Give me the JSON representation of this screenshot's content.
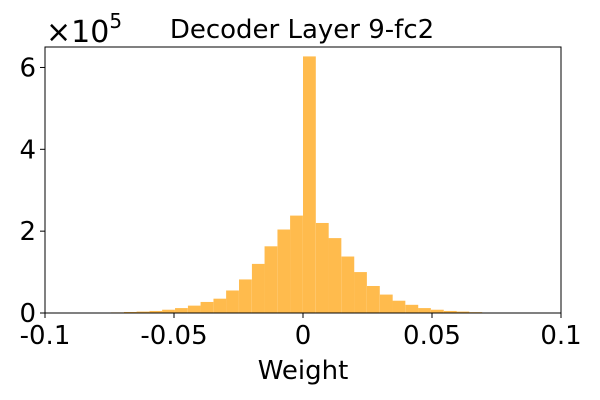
{
  "chart_data": {
    "type": "bar",
    "title": "Decoder Layer 9-fc2",
    "xlabel": "Weight",
    "ylabel": "",
    "xlim": [
      -0.1,
      0.1
    ],
    "ylim": [
      0,
      650000
    ],
    "x_ticks": [
      -0.1,
      -0.05,
      0,
      0.05,
      0.1
    ],
    "x_tick_labels": [
      "-0.1",
      "-0.05",
      "0",
      "0.05",
      "0.1"
    ],
    "y_ticks": [
      0,
      200000,
      400000,
      600000
    ],
    "y_tick_labels": [
      "0",
      "2",
      "4",
      "6"
    ],
    "y_scale_base": "×10",
    "y_scale_exp": "5",
    "grid": false,
    "bar_color": "#FFBB4D",
    "bin_width": 0.00496,
    "bins": [
      {
        "x0": -0.0794,
        "value": 800
      },
      {
        "x0": -0.0744,
        "value": 1500
      },
      {
        "x0": -0.0694,
        "value": 2500
      },
      {
        "x0": -0.0645,
        "value": 3500
      },
      {
        "x0": -0.0595,
        "value": 5000
      },
      {
        "x0": -0.0546,
        "value": 8000
      },
      {
        "x0": -0.0496,
        "value": 12000
      },
      {
        "x0": -0.0446,
        "value": 18000
      },
      {
        "x0": -0.0397,
        "value": 27000
      },
      {
        "x0": -0.0347,
        "value": 35000
      },
      {
        "x0": -0.0298,
        "value": 55000
      },
      {
        "x0": -0.0248,
        "value": 82000
      },
      {
        "x0": -0.0198,
        "value": 120000
      },
      {
        "x0": -0.0149,
        "value": 163000
      },
      {
        "x0": -0.0099,
        "value": 204000
      },
      {
        "x0": -0.005,
        "value": 238000
      },
      {
        "x0": 0.0,
        "value": 627000
      },
      {
        "x0": 0.005,
        "value": 220000
      },
      {
        "x0": 0.0099,
        "value": 183000
      },
      {
        "x0": 0.0149,
        "value": 138000
      },
      {
        "x0": 0.0198,
        "value": 100000
      },
      {
        "x0": 0.0248,
        "value": 66000
      },
      {
        "x0": 0.0298,
        "value": 45000
      },
      {
        "x0": 0.0347,
        "value": 30000
      },
      {
        "x0": 0.0397,
        "value": 20000
      },
      {
        "x0": 0.0446,
        "value": 12000
      },
      {
        "x0": 0.0496,
        "value": 8000
      },
      {
        "x0": 0.0546,
        "value": 5000
      },
      {
        "x0": 0.0595,
        "value": 3500
      },
      {
        "x0": 0.0645,
        "value": 2000
      },
      {
        "x0": 0.0694,
        "value": 1000
      }
    ]
  }
}
